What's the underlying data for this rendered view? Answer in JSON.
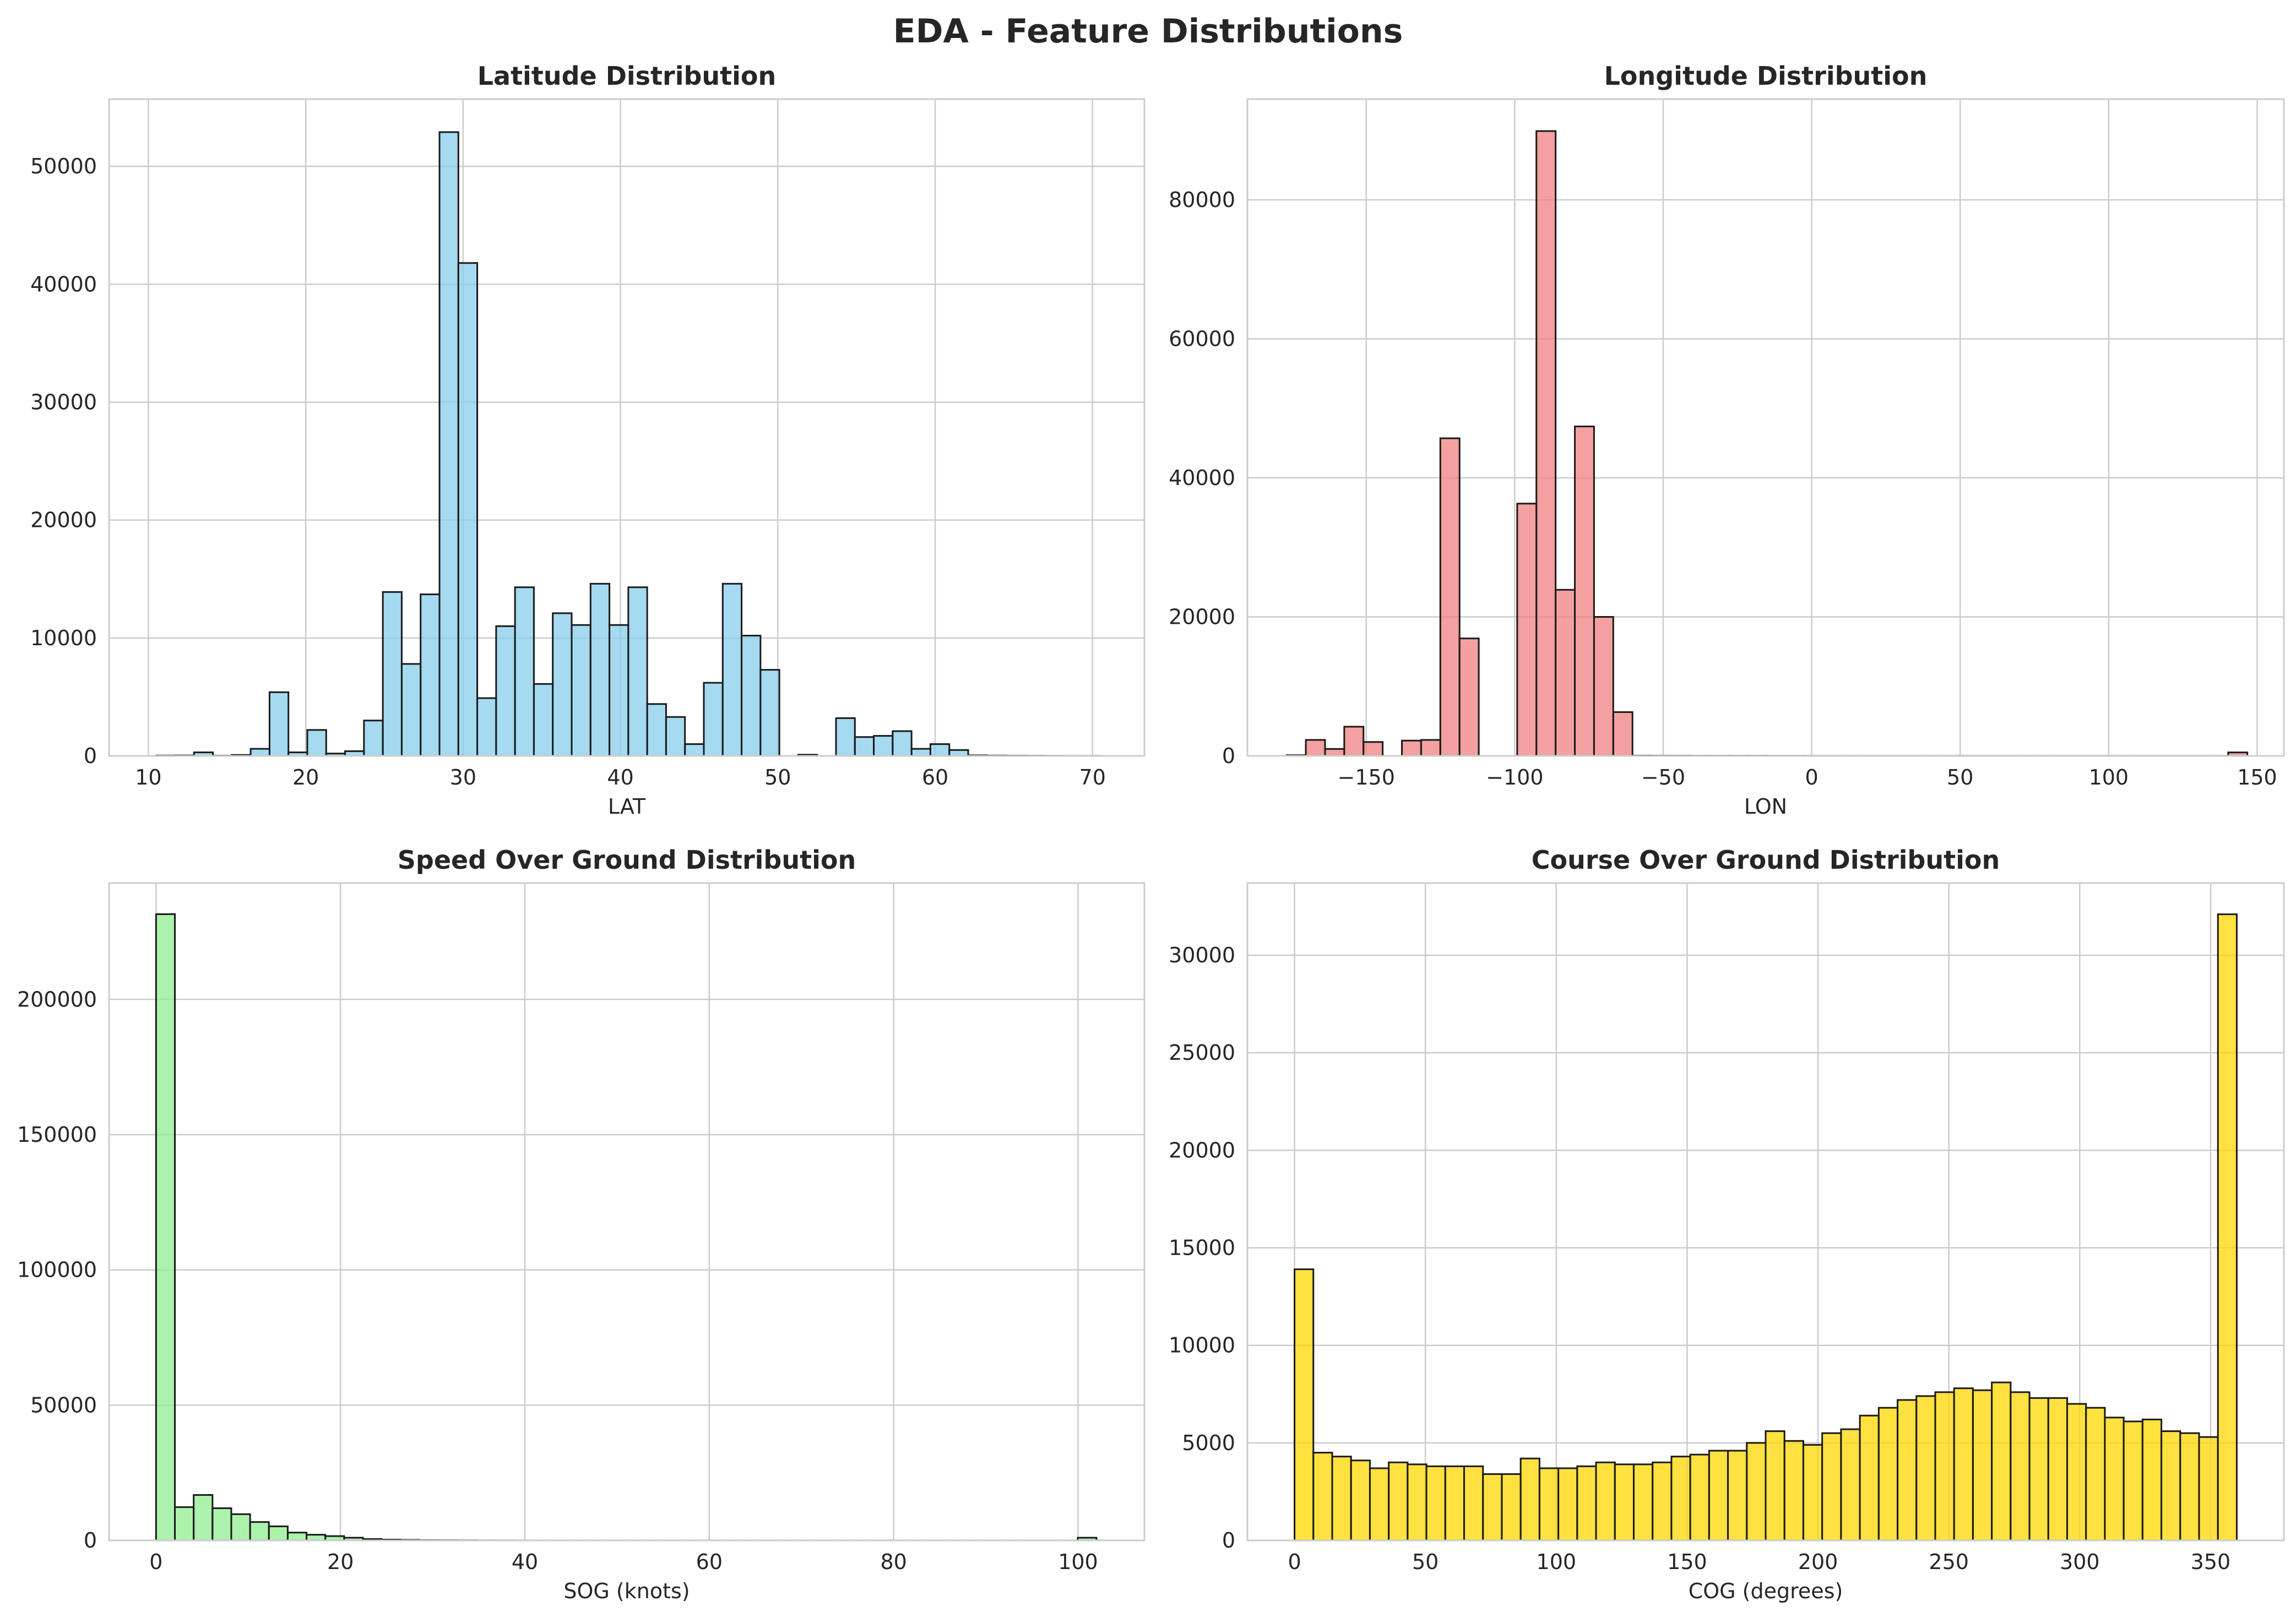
{
  "figure": {
    "title": "EDA - Feature Distributions"
  },
  "chart_data": [
    {
      "type": "bar",
      "title": "Latitude Distribution",
      "xlabel": "LAT",
      "ylabel": "",
      "color": "#87CEEB",
      "edge_color": "#1a1a1a",
      "grid": true,
      "xlim": [
        7.5,
        73.3
      ],
      "ylim": [
        0,
        55700
      ],
      "xticks": [
        10,
        20,
        30,
        40,
        50,
        60,
        70
      ],
      "xtick_labels": [
        "10",
        "20",
        "30",
        "40",
        "50",
        "60",
        "70"
      ],
      "yticks": [
        0,
        10000,
        20000,
        30000,
        40000,
        50000
      ],
      "ytick_labels": [
        "0",
        "10000",
        "20000",
        "30000",
        "40000",
        "50000"
      ],
      "bins": {
        "start": 10.5,
        "width": 1.2,
        "count": 50
      },
      "values": [
        30,
        40,
        300,
        20,
        80,
        600,
        5400,
        300,
        2200,
        200,
        400,
        3000,
        13900,
        7800,
        13700,
        52900,
        41800,
        4900,
        11000,
        14300,
        6100,
        12100,
        11100,
        14600,
        11100,
        14300,
        4400,
        3300,
        1000,
        6200,
        14600,
        10200,
        7300,
        0,
        100,
        0,
        3200,
        1600,
        1700,
        2100,
        600,
        1000,
        500,
        50,
        30,
        20,
        15,
        10,
        5,
        5
      ]
    },
    {
      "type": "bar",
      "title": "Longitude Distribution",
      "xlabel": "LON",
      "ylabel": "",
      "color": "#F08080",
      "edge_color": "#1a1a1a",
      "grid": true,
      "xlim": [
        -190,
        159
      ],
      "ylim": [
        0,
        94500
      ],
      "xticks": [
        -150,
        -100,
        -50,
        0,
        50,
        100,
        150
      ],
      "xtick_labels": [
        "−150",
        "−100",
        "−50",
        "0",
        "50",
        "100",
        "150"
      ],
      "yticks": [
        0,
        20000,
        40000,
        60000,
        80000
      ],
      "ytick_labels": [
        "0",
        "20000",
        "40000",
        "60000",
        "80000"
      ],
      "bins": {
        "start": -176.8,
        "width": 6.47,
        "count": 50
      },
      "values": [
        100,
        2300,
        1000,
        4200,
        2000,
        0,
        2200,
        2300,
        45700,
        16900,
        0,
        0,
        36300,
        89900,
        23900,
        47400,
        20000,
        6300,
        40,
        30,
        30,
        20,
        20,
        20,
        20,
        15,
        15,
        10,
        10,
        10,
        10,
        10,
        10,
        10,
        10,
        10,
        10,
        10,
        10,
        10,
        10,
        10,
        10,
        10,
        10,
        10,
        10,
        10,
        10,
        500
      ]
    },
    {
      "type": "bar",
      "title": "Speed Over Ground Distribution",
      "xlabel": "SOG (knots)",
      "ylabel": "",
      "color": "#90EE90",
      "edge_color": "#1a1a1a",
      "grid": true,
      "xlim": [
        -5.1,
        107.2
      ],
      "ylim": [
        0,
        243000
      ],
      "xticks": [
        0,
        20,
        40,
        60,
        80,
        100
      ],
      "xtick_labels": [
        "0",
        "20",
        "40",
        "60",
        "80",
        "100"
      ],
      "yticks": [
        0,
        50000,
        100000,
        150000,
        200000
      ],
      "ytick_labels": [
        "0",
        "50000",
        "100000",
        "150000",
        "200000"
      ],
      "bins": {
        "start": 0,
        "width": 2.04,
        "count": 50
      },
      "values": [
        231500,
        12300,
        16800,
        11900,
        9700,
        6800,
        5200,
        2900,
        2100,
        1600,
        1000,
        500,
        300,
        200,
        100,
        80,
        50,
        30,
        20,
        10,
        10,
        10,
        10,
        10,
        10,
        10,
        10,
        10,
        10,
        10,
        10,
        10,
        10,
        10,
        10,
        10,
        10,
        10,
        10,
        10,
        10,
        10,
        10,
        10,
        10,
        10,
        10,
        10,
        10,
        1000
      ]
    },
    {
      "type": "bar",
      "title": "Course Over Ground Distribution",
      "xlabel": "COG (degrees)",
      "ylabel": "",
      "color": "#FFD700",
      "edge_color": "#1a1a1a",
      "grid": true,
      "xlim": [
        -18,
        378
      ],
      "ylim": [
        0,
        33700
      ],
      "xticks": [
        0,
        50,
        100,
        150,
        200,
        250,
        300,
        350
      ],
      "xtick_labels": [
        "0",
        "50",
        "100",
        "150",
        "200",
        "250",
        "300",
        "350"
      ],
      "yticks": [
        0,
        5000,
        10000,
        15000,
        20000,
        25000,
        30000
      ],
      "ytick_labels": [
        "0",
        "5000",
        "10000",
        "15000",
        "20000",
        "25000",
        "30000"
      ],
      "bins": {
        "start": 0,
        "width": 7.2,
        "count": 50
      },
      "values": [
        13900,
        4500,
        4300,
        4100,
        3700,
        4000,
        3900,
        3800,
        3800,
        3800,
        3400,
        3400,
        4200,
        3700,
        3700,
        3800,
        4000,
        3900,
        3900,
        4000,
        4300,
        4400,
        4600,
        4600,
        5000,
        5600,
        5100,
        4900,
        5500,
        5700,
        6400,
        6800,
        7200,
        7400,
        7600,
        7800,
        7700,
        8100,
        7600,
        7300,
        7300,
        7000,
        6800,
        6300,
        6100,
        6200,
        5600,
        5500,
        5300,
        32100
      ]
    }
  ]
}
